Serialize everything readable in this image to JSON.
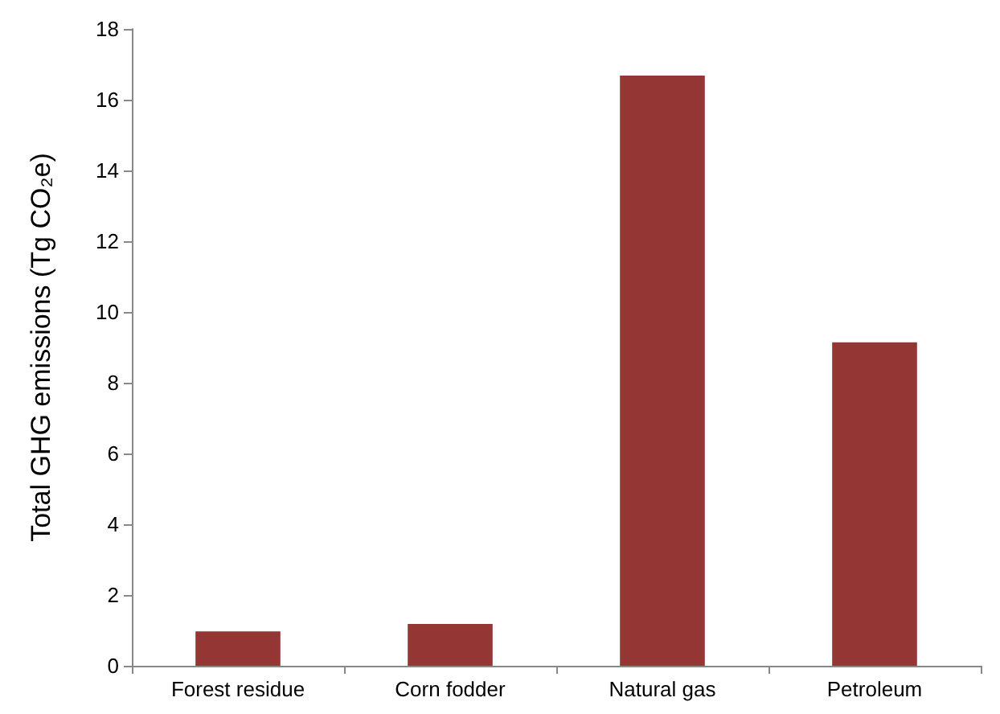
{
  "chart_data": {
    "type": "bar",
    "ylabel": "Total GHG emissions (Tg CO₂e)",
    "categories": [
      "Forest residue",
      "Corn fodder",
      "Natural gas",
      "Petroleum"
    ],
    "values": [
      0.97,
      1.18,
      16.68,
      9.14
    ],
    "color": "#943634",
    "ylim": [
      0,
      18
    ],
    "yticks": [
      0,
      2,
      4,
      6,
      8,
      10,
      12,
      14,
      16,
      18
    ],
    "grid": false
  }
}
